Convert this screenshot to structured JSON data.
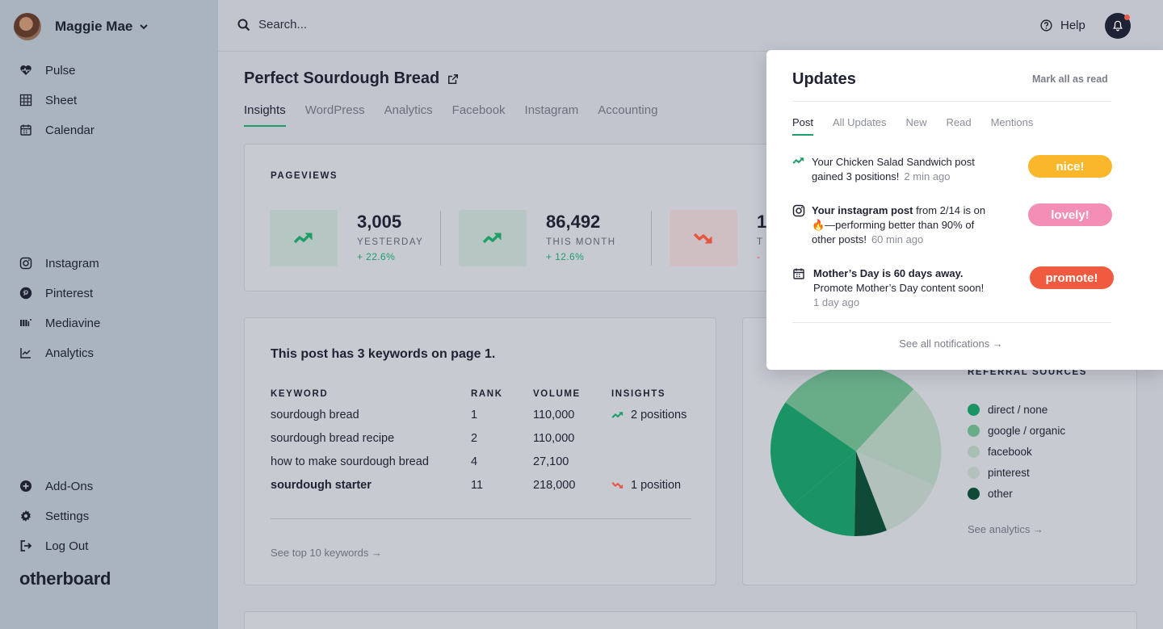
{
  "sidebar": {
    "user_name": "Maggie Mae",
    "top_items": [
      {
        "label": "Pulse",
        "icon": "heart-pulse-icon"
      },
      {
        "label": "Sheet",
        "icon": "grid-icon"
      },
      {
        "label": "Calendar",
        "icon": "calendar-icon"
      }
    ],
    "integration_items": [
      {
        "label": "Instagram",
        "icon": "instagram-icon"
      },
      {
        "label": "Pinterest",
        "icon": "pinterest-icon"
      },
      {
        "label": "Mediavine",
        "icon": "mediavine-icon"
      },
      {
        "label": "Analytics",
        "icon": "chart-line-icon"
      }
    ],
    "bottom_items": [
      {
        "label": "Add-Ons",
        "icon": "plus-circle-icon"
      },
      {
        "label": "Settings",
        "icon": "gear-icon"
      },
      {
        "label": "Log Out",
        "icon": "logout-icon"
      }
    ],
    "brand": "otherboard"
  },
  "topbar": {
    "search_placeholder": "Search...",
    "help_label": "Help"
  },
  "main": {
    "title": "Perfect Sourdough Bread",
    "tabs": [
      "Insights",
      "WordPress",
      "Analytics",
      "Facebook",
      "Instagram",
      "Accounting"
    ],
    "active_tab": "Insights",
    "pageviews": {
      "title": "PAGEVIEWS",
      "stats": [
        {
          "value": "3,005",
          "label": "YESTERDAY",
          "change": "+ 22.6%",
          "trend": "up"
        },
        {
          "value": "86,492",
          "label": "THIS MONTH",
          "change": "+ 12.6%",
          "trend": "up"
        },
        {
          "value": "1",
          "label": "T",
          "change": "-",
          "trend": "down"
        }
      ]
    },
    "keywords": {
      "title": "This post has 3 keywords on page 1.",
      "headers": [
        "KEYWORD",
        "RANK",
        "VOLUME",
        "INSIGHTS"
      ],
      "rows": [
        {
          "keyword": "sourdough bread",
          "rank": "1",
          "volume": "110,000",
          "insight": "2 positions",
          "trend": "up",
          "bold": false
        },
        {
          "keyword": "sourdough bread recipe",
          "rank": "2",
          "volume": "110,000",
          "insight": "",
          "trend": "",
          "bold": false
        },
        {
          "keyword": "how to make sourdough bread",
          "rank": "4",
          "volume": "27,100",
          "insight": "",
          "trend": "",
          "bold": false
        },
        {
          "keyword": "sourdough starter",
          "rank": "11",
          "volume": "218,000",
          "insight": "1 position",
          "trend": "down",
          "bold": true
        }
      ],
      "link": "See top 10 keywords →"
    },
    "referrals": {
      "title": "REFERRAL SOURCES",
      "legend": [
        {
          "label": "direct / none",
          "color": "#1a9464"
        },
        {
          "label": "google / organic",
          "color": "#68ad88"
        },
        {
          "label": "facebook",
          "color": "#a8c0b4"
        },
        {
          "label": "pinterest",
          "color": "#b3c1bc"
        },
        {
          "label": "other",
          "color": "#0f4a37"
        }
      ],
      "link": "See analytics →"
    }
  },
  "updates": {
    "title": "Updates",
    "mark_all": "Mark all as read",
    "tabs": [
      "Post",
      "All Updates",
      "New",
      "Read",
      "Mentions"
    ],
    "active_tab": "Post",
    "notifications": [
      {
        "icon": "trend-up-icon",
        "text": "Your Chicken Salad Sandwich post gained 3 positions!",
        "time": "2 min ago",
        "action": "nice!",
        "action_color": "#fbb72b"
      },
      {
        "icon": "instagram-icon",
        "bold": "Your instagram post",
        "text": " from 2/14 is on 🔥—performing better than 90% of other posts!",
        "time": "60 min ago",
        "action": "lovely!",
        "action_color": "#f38fb4"
      },
      {
        "icon": "calendar-icon",
        "bold": "Mother’s Day is 60 days away.",
        "text": "Promote Mother’s Day content soon!",
        "time": "1 day ago",
        "action": "promote!",
        "action_color": "#f05b40"
      }
    ],
    "see_all": "See all notifications →"
  },
  "colors": {
    "accent_green": "#1f9e6a",
    "trend_down": "#e5553f",
    "navy": "#1d2236"
  }
}
